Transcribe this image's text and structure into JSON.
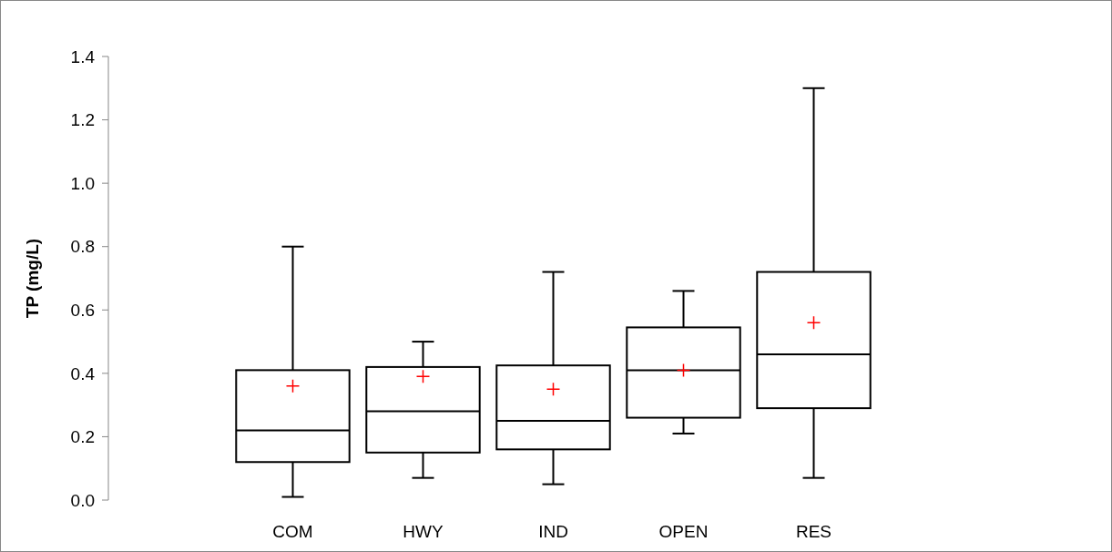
{
  "chart_data": {
    "type": "box",
    "ylabel": "TP (mg/L)",
    "categories": [
      "COM",
      "HWY",
      "IND",
      "OPEN",
      "RES"
    ],
    "boxes": [
      {
        "low": 0.01,
        "q1": 0.12,
        "median": 0.22,
        "q3": 0.41,
        "high": 0.8,
        "mean": 0.36
      },
      {
        "low": 0.07,
        "q1": 0.15,
        "median": 0.28,
        "q3": 0.42,
        "high": 0.5,
        "mean": 0.39
      },
      {
        "low": 0.05,
        "q1": 0.16,
        "median": 0.25,
        "q3": 0.425,
        "high": 0.72,
        "mean": 0.35
      },
      {
        "low": 0.21,
        "q1": 0.26,
        "median": 0.41,
        "q3": 0.545,
        "high": 0.66,
        "mean": 0.41
      },
      {
        "low": 0.07,
        "q1": 0.29,
        "median": 0.46,
        "q3": 0.72,
        "high": 1.3,
        "mean": 0.56
      }
    ],
    "ylim": [
      0,
      1.4
    ],
    "yticks": [
      {
        "value": 0,
        "label": "0.0"
      },
      {
        "value": 0.2,
        "label": "0.2"
      },
      {
        "value": 0.4,
        "label": "0.4"
      },
      {
        "value": 0.6,
        "label": "0.6"
      },
      {
        "value": 0.8,
        "label": "0.8"
      },
      {
        "value": 1,
        "label": "1.0"
      },
      {
        "value": 1.2,
        "label": "1.2"
      },
      {
        "value": 1.4,
        "label": "1.4"
      }
    ],
    "grid": false
  }
}
